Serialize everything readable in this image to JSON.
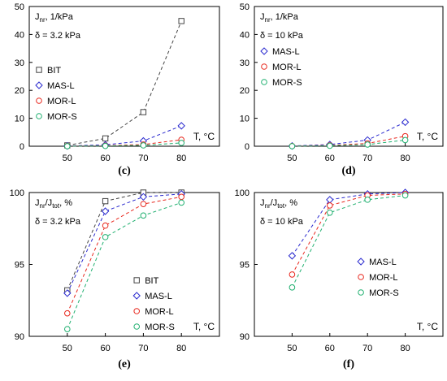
{
  "chart_data": [
    {
      "type": "line",
      "panel_label": "(c)",
      "ylabel": "J_nr, 1/kPa",
      "ylabel_main": "J",
      "ylabel_sub": "nr",
      "ylabel_rest": ", 1/kPa",
      "condition": "δ = 3.2 kPa",
      "xlabel": "T, °C",
      "x": [
        50,
        60,
        70,
        80
      ],
      "xticks": [
        "50",
        "60",
        "70",
        "80"
      ],
      "xlim": [
        40,
        90
      ],
      "ylim": [
        0,
        50
      ],
      "yticks": [
        0,
        10,
        20,
        30,
        40,
        50
      ],
      "legend_position": "left",
      "series": [
        {
          "name": "BIT",
          "color": "#444444",
          "marker": "square",
          "values": [
            0.3,
            2.8,
            12.2,
            44.8
          ]
        },
        {
          "name": "MAS-L",
          "color": "#2b2bcf",
          "marker": "diamond",
          "values": [
            0.1,
            0.5,
            1.9,
            7.3
          ]
        },
        {
          "name": "MOR-L",
          "color": "#e8281e",
          "marker": "circle",
          "values": [
            0.05,
            0.2,
            0.6,
            2.3
          ]
        },
        {
          "name": "MOR-S",
          "color": "#20b070",
          "marker": "circle",
          "values": [
            0.02,
            0.1,
            0.3,
            1.2
          ]
        }
      ]
    },
    {
      "type": "line",
      "panel_label": "(d)",
      "ylabel": "J_nr, 1/kPa",
      "ylabel_main": "J",
      "ylabel_sub": "nr",
      "ylabel_rest": ", 1/kPa",
      "condition": "δ = 10 kPa",
      "xlabel": "T, °C",
      "x": [
        50,
        60,
        70,
        80
      ],
      "xticks": [
        "50",
        "60",
        "70",
        "80"
      ],
      "xlim": [
        40,
        90
      ],
      "ylim": [
        0,
        50
      ],
      "yticks": [
        0,
        10,
        20,
        30,
        40,
        50
      ],
      "legend_position": "left",
      "series": [
        {
          "name": "MAS-L",
          "color": "#2b2bcf",
          "marker": "diamond",
          "values": [
            0.1,
            0.6,
            2.2,
            8.6
          ]
        },
        {
          "name": "MOR-L",
          "color": "#e8281e",
          "marker": "circle",
          "values": [
            0.05,
            0.3,
            1.0,
            3.6
          ]
        },
        {
          "name": "MOR-S",
          "color": "#20b070",
          "marker": "circle",
          "values": [
            0.02,
            0.15,
            0.6,
            2.2
          ]
        }
      ]
    },
    {
      "type": "line",
      "panel_label": "(e)",
      "ylabel": "J_nr/J_tot, %",
      "ylabel_main": "J",
      "ylabel_sub": "nr",
      "ylabel_rest": "/J",
      "ylabel_sub2": "tot",
      "ylabel_rest2": ", %",
      "condition": "δ = 3.2 kPa",
      "xlabel": "T, °C",
      "x": [
        50,
        60,
        70,
        80
      ],
      "xticks": [
        "50",
        "60",
        "70",
        "80"
      ],
      "xlim": [
        40,
        90
      ],
      "ylim": [
        90,
        100
      ],
      "yticks": [
        90,
        95,
        100
      ],
      "legend_position": "right",
      "series": [
        {
          "name": "BIT",
          "color": "#444444",
          "marker": "square",
          "values": [
            93.2,
            99.4,
            100.0,
            100.0
          ]
        },
        {
          "name": "MAS-L",
          "color": "#2b2bcf",
          "marker": "diamond",
          "values": [
            93.0,
            98.7,
            99.7,
            99.9
          ]
        },
        {
          "name": "MOR-L",
          "color": "#e8281e",
          "marker": "circle",
          "values": [
            91.6,
            97.7,
            99.2,
            99.7
          ]
        },
        {
          "name": "MOR-S",
          "color": "#20b070",
          "marker": "circle",
          "values": [
            90.5,
            96.9,
            98.4,
            99.3
          ]
        }
      ]
    },
    {
      "type": "line",
      "panel_label": "(f)",
      "ylabel": "J_nr/J_tot, %",
      "ylabel_main": "J",
      "ylabel_sub": "nr",
      "ylabel_rest": "/J",
      "ylabel_sub2": "tot",
      "ylabel_rest2": ", %",
      "condition": "δ = 10 kPa",
      "xlabel": "T, °C",
      "x": [
        50,
        60,
        70,
        80
      ],
      "xticks": [
        "50",
        "60",
        "70",
        "80"
      ],
      "xlim": [
        40,
        90
      ],
      "ylim": [
        90,
        100
      ],
      "yticks": [
        90,
        95,
        100
      ],
      "legend_position": "right",
      "series": [
        {
          "name": "MAS-L",
          "color": "#2b2bcf",
          "marker": "diamond",
          "values": [
            95.6,
            99.5,
            99.9,
            100.0
          ]
        },
        {
          "name": "MOR-L",
          "color": "#e8281e",
          "marker": "circle",
          "values": [
            94.3,
            99.1,
            99.8,
            99.9
          ]
        },
        {
          "name": "MOR-S",
          "color": "#20b070",
          "marker": "circle",
          "values": [
            93.4,
            98.6,
            99.5,
            99.8
          ]
        }
      ]
    }
  ]
}
